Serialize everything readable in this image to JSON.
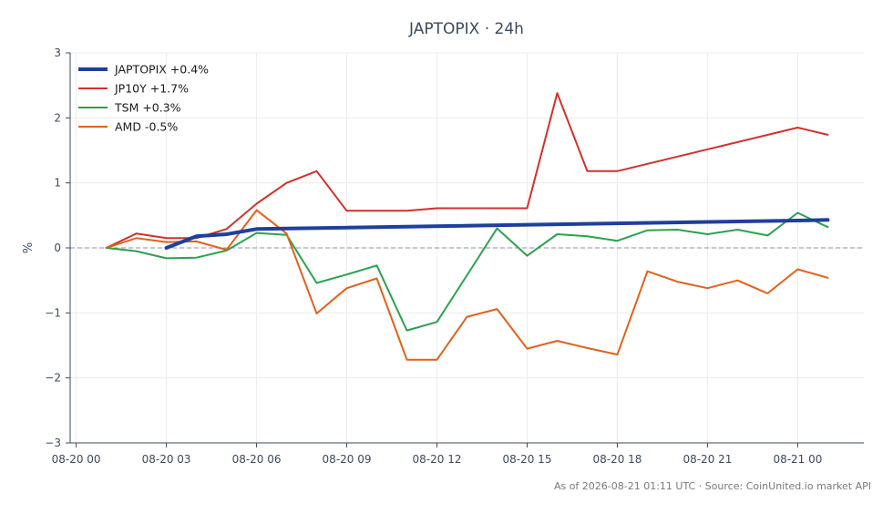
{
  "chart_data": {
    "type": "line",
    "title": "JAPTOPIX · 24h",
    "ylabel": "%",
    "xlabel": "",
    "ylim": [
      -3,
      3
    ],
    "xlim": [
      -0.2,
      26.2
    ],
    "x_ticks": [
      {
        "x": 0,
        "label": "08-20 00"
      },
      {
        "x": 3,
        "label": "08-20 03"
      },
      {
        "x": 6,
        "label": "08-20 06"
      },
      {
        "x": 9,
        "label": "08-20 09"
      },
      {
        "x": 12,
        "label": "08-20 12"
      },
      {
        "x": 15,
        "label": "08-20 15"
      },
      {
        "x": 18,
        "label": "08-20 18"
      },
      {
        "x": 21,
        "label": "08-20 21"
      },
      {
        "x": 24,
        "label": "08-21 00"
      }
    ],
    "y_ticks": [
      {
        "y": 3,
        "label": "3"
      },
      {
        "y": 2,
        "label": "2"
      },
      {
        "y": 1,
        "label": "1"
      },
      {
        "y": 0,
        "label": "0"
      },
      {
        "y": -1,
        "label": "−1"
      },
      {
        "y": -2,
        "label": "−2"
      },
      {
        "y": -3,
        "label": "−3"
      }
    ],
    "grid": true,
    "zero_line": true,
    "legend_position": "top-left",
    "series": [
      {
        "name": "JAPTOPIX +0.4%",
        "color": "#1f3f9f",
        "bold": true,
        "x": [
          3,
          4,
          5,
          6,
          24,
          25
        ],
        "y": [
          0.0,
          0.18,
          0.21,
          0.29,
          0.42,
          0.43
        ]
      },
      {
        "name": "JP10Y +1.7%",
        "color": "#d0312d",
        "bold": false,
        "x": [
          1,
          2,
          3,
          4,
          5,
          6,
          7,
          8,
          9,
          10,
          11,
          12,
          13,
          14,
          15,
          16,
          17,
          18,
          24,
          25
        ],
        "y": [
          0.0,
          0.22,
          0.15,
          0.15,
          0.29,
          0.68,
          1.0,
          1.18,
          0.57,
          0.57,
          0.57,
          0.61,
          0.61,
          0.61,
          0.61,
          2.38,
          1.18,
          1.18,
          1.85,
          1.74
        ]
      },
      {
        "name": "TSM +0.3%",
        "color": "#2ca14f",
        "bold": false,
        "x": [
          1,
          2,
          3,
          4,
          5,
          6,
          7,
          8,
          9,
          10,
          11,
          12,
          13,
          14,
          15,
          16,
          17,
          18,
          19,
          20,
          21,
          22,
          23,
          24,
          25
        ],
        "y": [
          0.0,
          -0.05,
          -0.16,
          -0.15,
          -0.04,
          0.23,
          0.2,
          -0.54,
          -0.41,
          -0.27,
          -1.27,
          -1.14,
          -0.42,
          0.3,
          -0.12,
          0.21,
          0.18,
          0.11,
          0.27,
          0.28,
          0.21,
          0.28,
          0.19,
          0.54,
          0.32
        ]
      },
      {
        "name": "AMD -0.5%",
        "color": "#e0621c",
        "bold": false,
        "x": [
          1,
          2,
          3,
          4,
          5,
          6,
          7,
          8,
          9,
          10,
          11,
          12,
          13,
          14,
          15,
          16,
          17,
          18,
          19,
          20,
          21,
          22,
          23,
          24,
          25
        ],
        "y": [
          0.0,
          0.15,
          0.09,
          0.1,
          -0.03,
          0.58,
          0.22,
          -1.01,
          -0.62,
          -0.47,
          -1.72,
          -1.72,
          -1.06,
          -0.94,
          -1.55,
          -1.43,
          -1.54,
          -1.64,
          -0.36,
          -0.52,
          -0.62,
          -0.5,
          -0.7,
          -0.33,
          -0.46
        ]
      }
    ]
  },
  "footer": "As of 2026-08-21 01:11 UTC · Source: CoinUnited.io market API"
}
